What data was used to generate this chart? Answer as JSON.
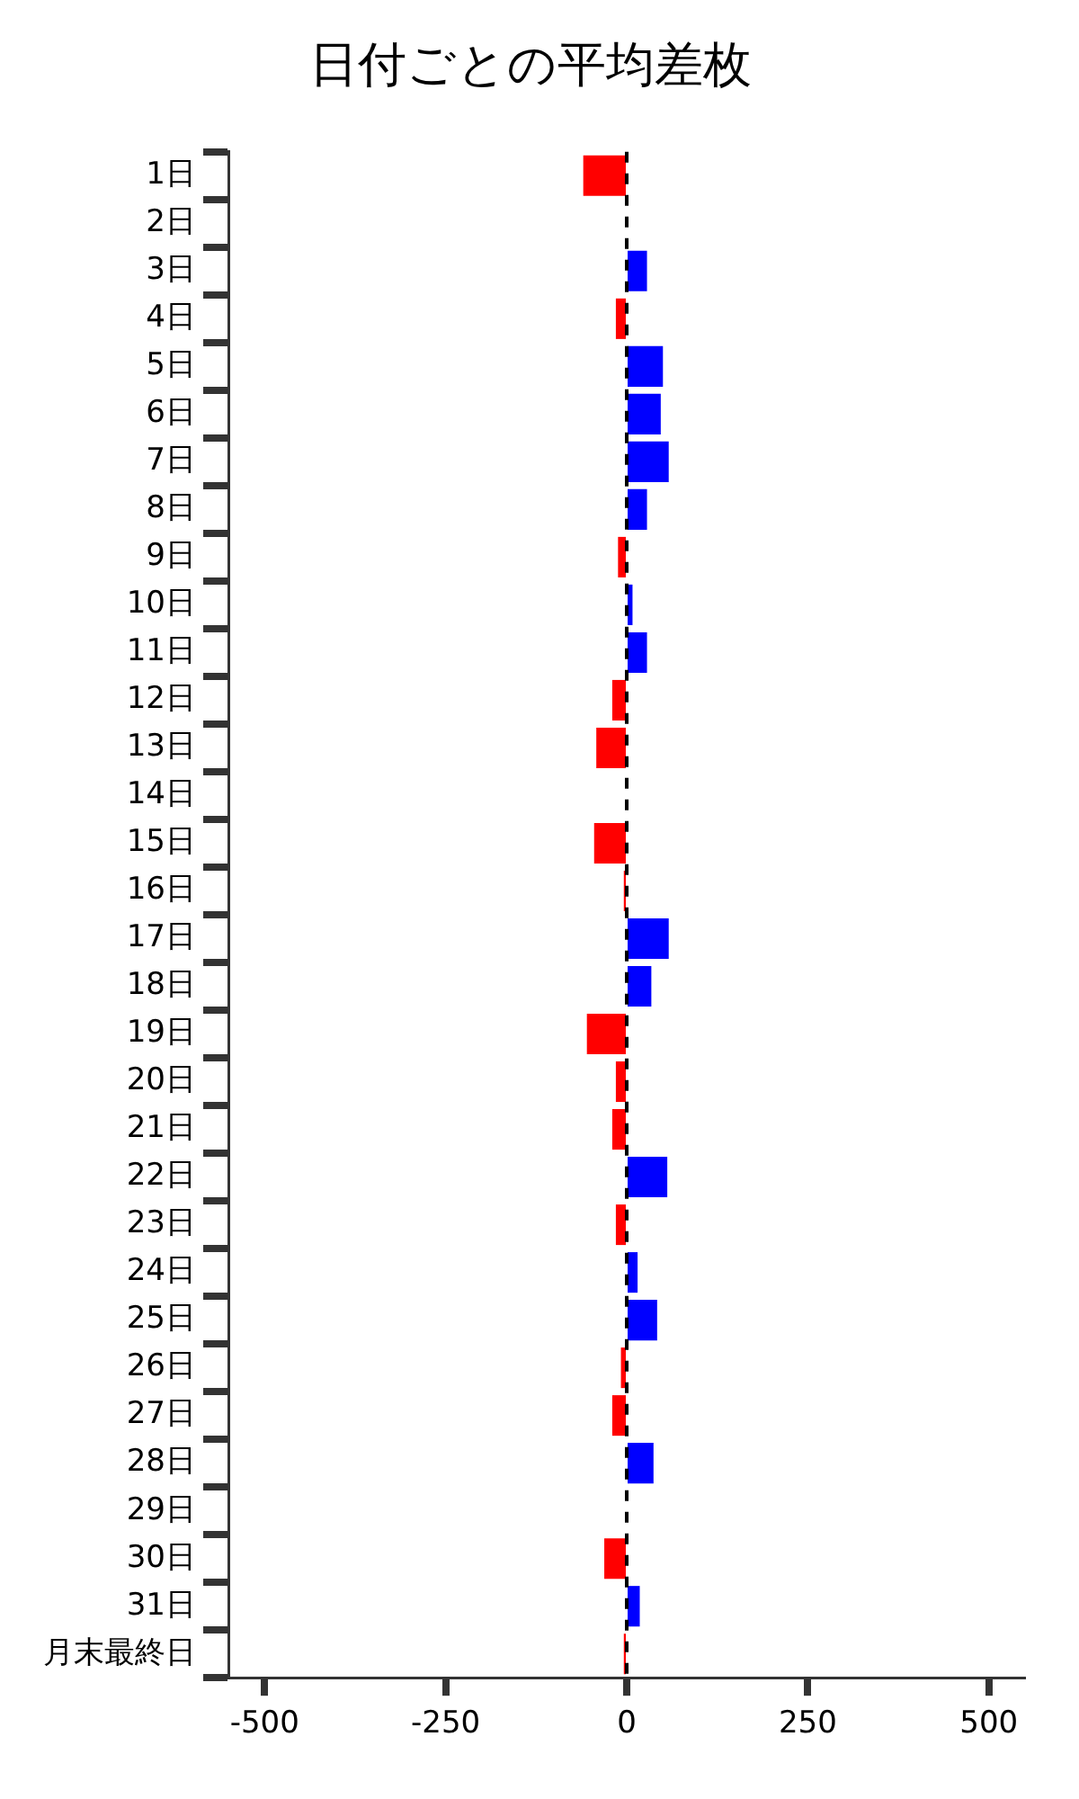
{
  "chart_data": {
    "type": "bar",
    "orientation": "horizontal",
    "title": "日付ごとの平均差枚",
    "categories": [
      "1日",
      "2日",
      "3日",
      "4日",
      "5日",
      "6日",
      "7日",
      "8日",
      "9日",
      "10日",
      "11日",
      "12日",
      "13日",
      "14日",
      "15日",
      "16日",
      "17日",
      "18日",
      "19日",
      "20日",
      "21日",
      "22日",
      "23日",
      "24日",
      "25日",
      "26日",
      "27日",
      "28日",
      "29日",
      "30日",
      "31日",
      "月末最終日"
    ],
    "values": [
      -60,
      0,
      28,
      -15,
      50,
      47,
      58,
      28,
      -12,
      8,
      28,
      -20,
      -42,
      0,
      -45,
      -4,
      58,
      34,
      -55,
      -15,
      -20,
      56,
      -15,
      15,
      42,
      -8,
      -20,
      37,
      0,
      -31,
      18,
      -4
    ],
    "colors": [
      "#ff0000",
      "#0000ff",
      "#0000ff",
      "#ff0000",
      "#0000ff",
      "#0000ff",
      "#0000ff",
      "#0000ff",
      "#ff0000",
      "#0000ff",
      "#0000ff",
      "#ff0000",
      "#ff0000",
      "#0000ff",
      "#ff0000",
      "#ff0000",
      "#0000ff",
      "#0000ff",
      "#ff0000",
      "#ff0000",
      "#ff0000",
      "#0000ff",
      "#ff0000",
      "#0000ff",
      "#0000ff",
      "#ff0000",
      "#ff0000",
      "#0000ff",
      "#0000ff",
      "#ff0000",
      "#0000ff",
      "#ff0000"
    ],
    "xlim": [
      -550,
      550
    ],
    "xticks": [
      -500,
      -250,
      0,
      250,
      500
    ],
    "ref_lines": [
      {
        "axis": "x",
        "value": 0,
        "color": "#000000",
        "line_style": "dashed"
      }
    ],
    "grid": false,
    "legend": false
  }
}
